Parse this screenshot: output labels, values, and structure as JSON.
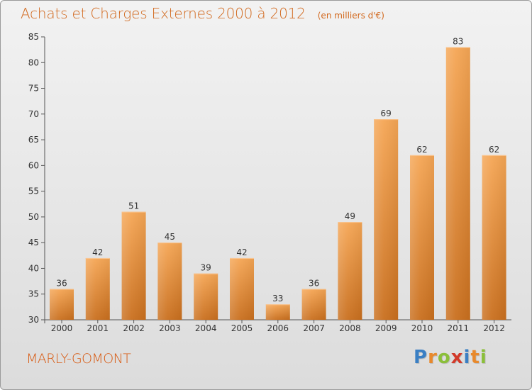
{
  "header": {
    "title": "Achats et Charges Externes 2000 à 2012",
    "subtitle": "(en milliers d'€)"
  },
  "footer": {
    "town": "MARLY-GOMONT",
    "brand_letters": [
      "P",
      "r",
      "o",
      "x",
      "i",
      "t",
      "i"
    ]
  },
  "colors": {
    "title": "#d2691e",
    "town": "#d85a12",
    "bar_top": "#f5a655",
    "bar_bottom": "#c96f1e",
    "brand": [
      "#3a7fc4",
      "#e8892c",
      "#8bbf3a",
      "#d23a2a",
      "#3a7fc4",
      "#e8892c",
      "#8bbf3a"
    ]
  },
  "chart_data": {
    "type": "bar",
    "title": "Achats et Charges Externes 2000 à 2012",
    "subtitle": "(en milliers d'€)",
    "categories": [
      "2000",
      "2001",
      "2002",
      "2003",
      "2004",
      "2005",
      "2006",
      "2007",
      "2008",
      "2009",
      "2010",
      "2011",
      "2012"
    ],
    "values": [
      36,
      42,
      51,
      45,
      39,
      42,
      33,
      36,
      49,
      69,
      62,
      83,
      62
    ],
    "ylim": [
      30,
      85
    ],
    "yticks": [
      30,
      35,
      40,
      45,
      50,
      55,
      60,
      65,
      70,
      75,
      80,
      85
    ],
    "grid": false,
    "data_labels": true
  }
}
